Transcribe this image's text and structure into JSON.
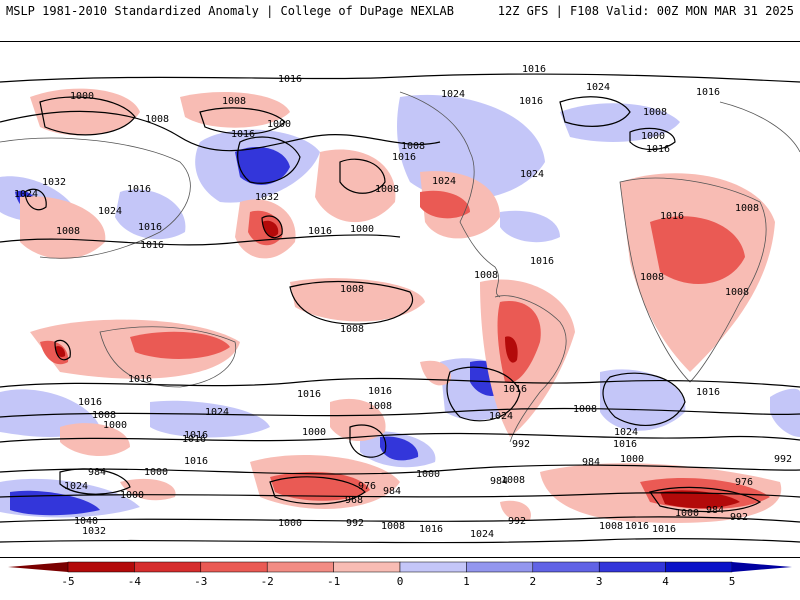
{
  "header": {
    "left": "MSLP 1981-2010 Standardized Anomaly | College of DuPage NEXLAB",
    "right": "12Z GFS | F108 Valid: 00Z MON MAR 31 2025"
  },
  "map": {
    "isobar_labels": [
      "1016",
      "1016",
      "1024",
      "1016",
      "1008",
      "1000",
      "1000",
      "1008",
      "1008",
      "1000",
      "1024",
      "1032",
      "1016",
      "1008",
      "1032",
      "1016",
      "1016",
      "1024",
      "1024",
      "1016",
      "1008",
      "1016",
      "1024",
      "1008",
      "1016",
      "1016",
      "1024",
      "1000",
      "1016",
      "1008",
      "1016",
      "1008",
      "1008",
      "1008",
      "1008",
      "1008",
      "1016",
      "1016",
      "1016",
      "1016",
      "1024",
      "1016",
      "1008",
      "1000",
      "1016",
      "1000",
      "1008",
      "1016",
      "1016",
      "1024",
      "992",
      "1008",
      "1024",
      "1016",
      "1000",
      "984",
      "992",
      "1000",
      "1008",
      "1016",
      "984",
      "1024",
      "1000",
      "976",
      "984",
      "968",
      "1000",
      "992",
      "1008",
      "1016",
      "1024",
      "992",
      "1008",
      "1016",
      "1000",
      "1040",
      "1032",
      "976",
      "984",
      "992",
      "1000",
      "1016",
      "1016",
      "984"
    ]
  },
  "colorbar": {
    "ticks": [
      "-5",
      "-4",
      "-3",
      "-2",
      "-1",
      "0",
      "1",
      "2",
      "3",
      "4",
      "5"
    ],
    "colors": [
      "#b30a0a",
      "#d62d2d",
      "#ea5a54",
      "#f28c84",
      "#f8bcb4",
      "#ffffff",
      "#c4c6f8",
      "#9396ee",
      "#6163e6",
      "#3336da",
      "#0a12c8"
    ],
    "neg_end": "#7a0000",
    "pos_end": "#0000a0"
  }
}
